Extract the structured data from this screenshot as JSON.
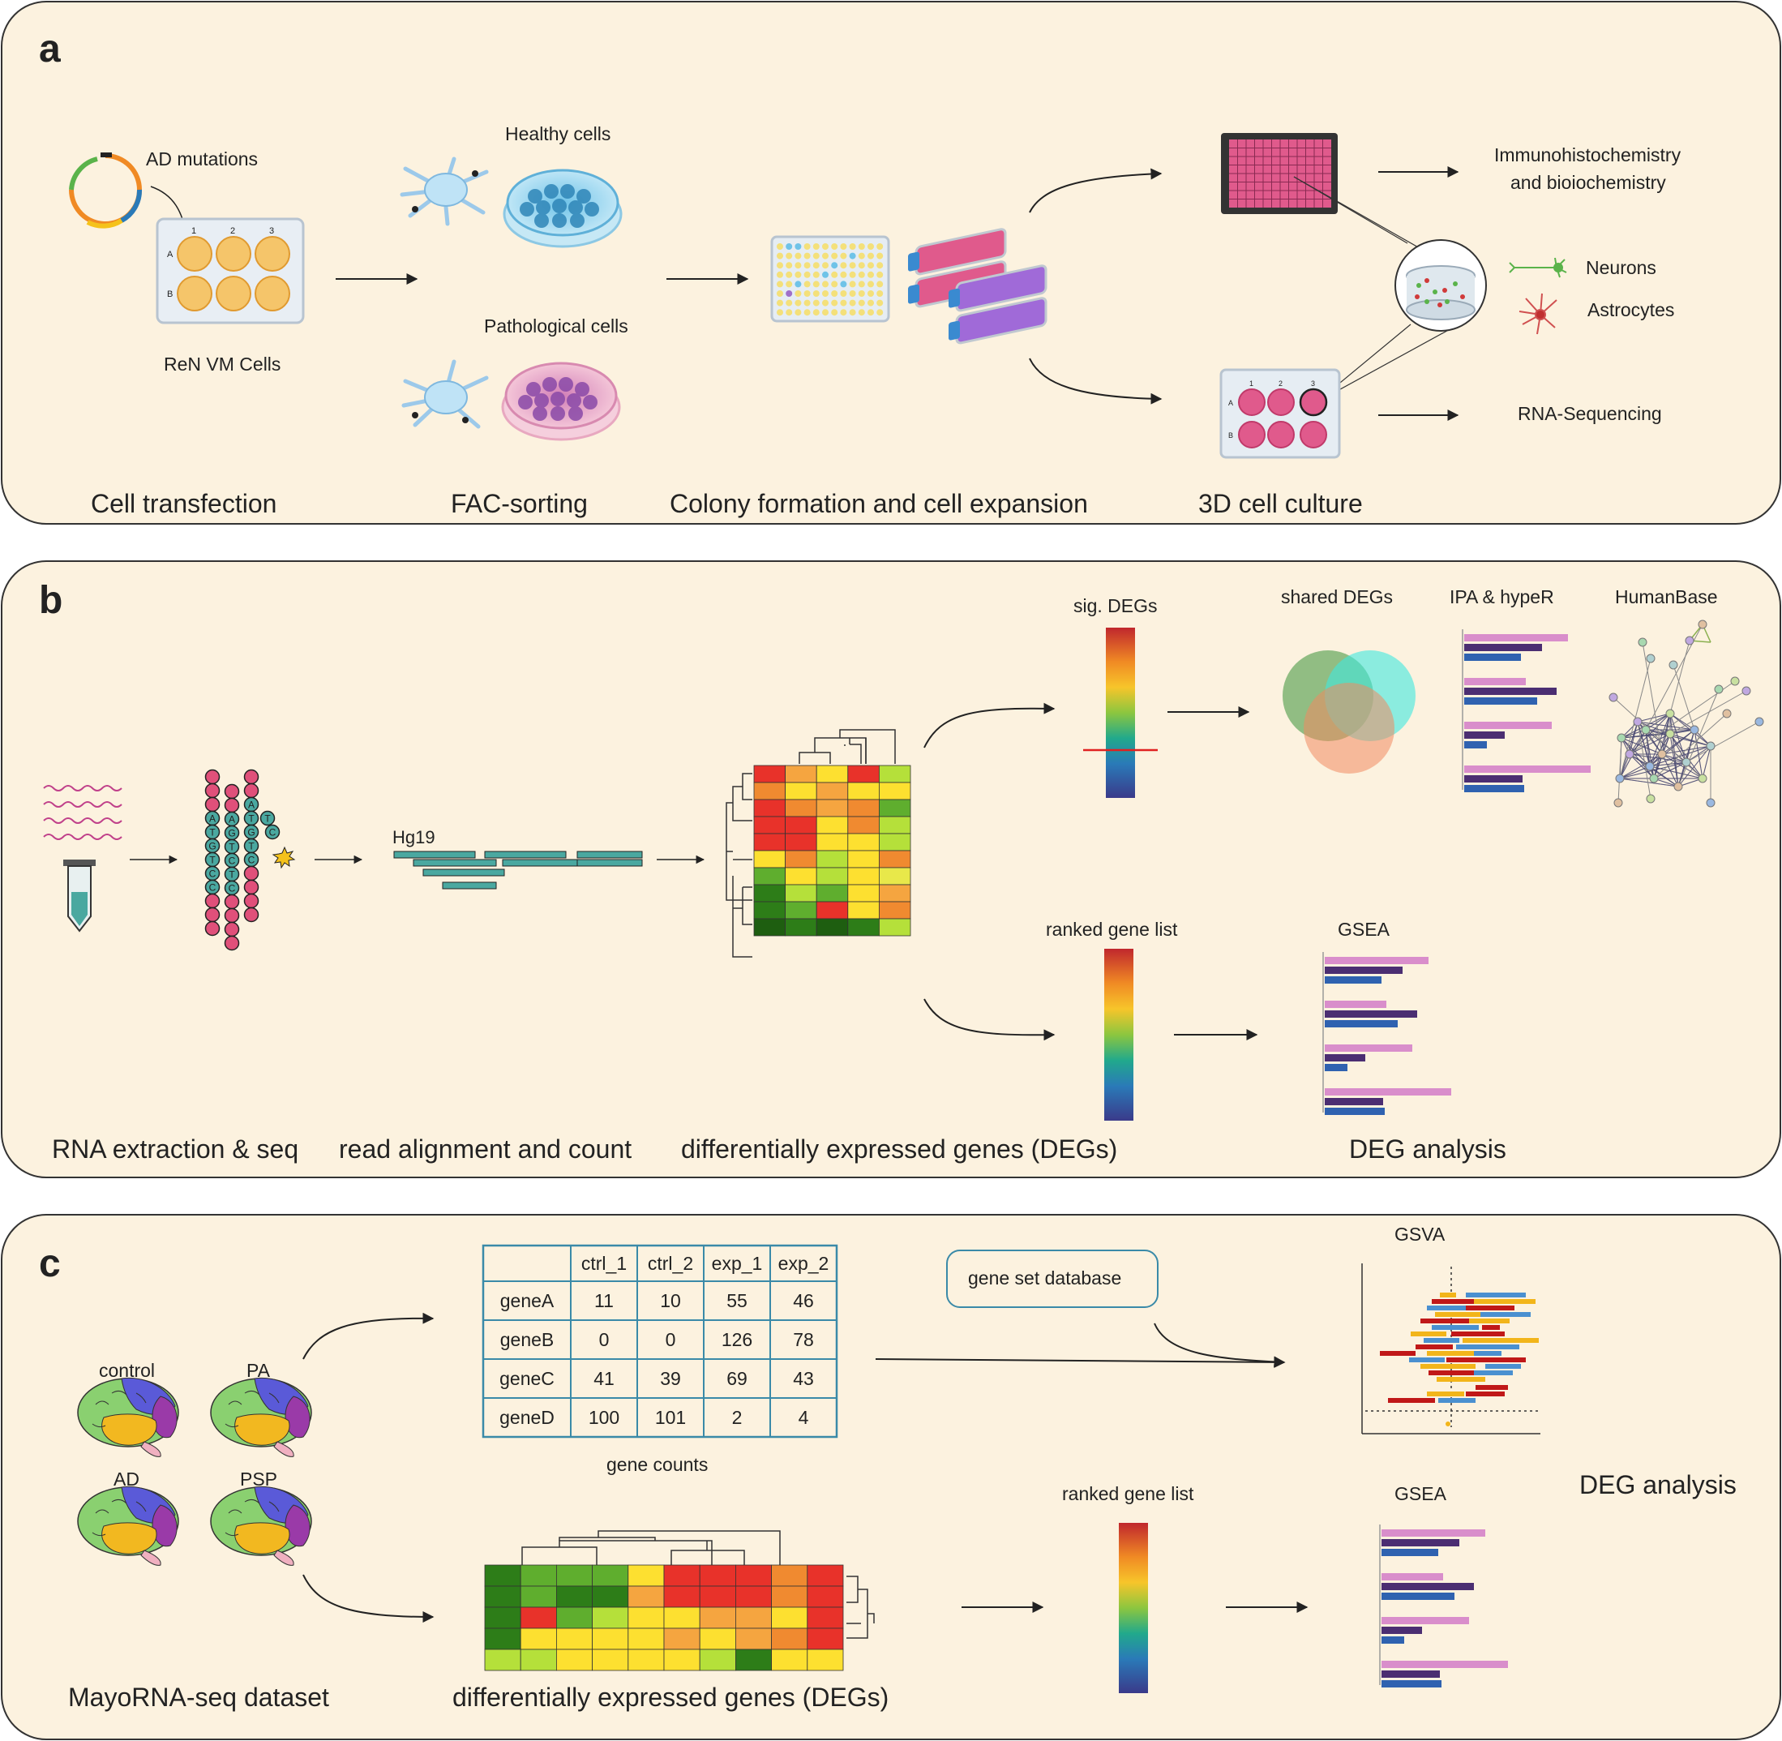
{
  "panels": {
    "a": {
      "letter": "a",
      "ad_mutations": "AD mutations",
      "ren_vm_cells": "ReN VM Cells",
      "healthy_cells": "Healthy cells",
      "pathological_cells": "Pathological cells",
      "immuno_line1": "Immunohistochemistry",
      "immuno_line2": "and bioiochemistry",
      "neurons": "Neurons",
      "astrocytes": "Astrocytes",
      "rna_sequencing": "RNA-Sequencing",
      "plate6_cols": [
        "1",
        "2",
        "3"
      ],
      "plate6_rows": [
        "A",
        "B"
      ],
      "steps": [
        "Cell transfection",
        "FAC-sorting",
        "Colony formation and cell expansion",
        "3D cell culture"
      ]
    },
    "b": {
      "letter": "b",
      "hg19": "Hg19",
      "seq_col1": [
        "A",
        "T",
        "G",
        "T",
        "C",
        "C"
      ],
      "seq_col2": [
        "A",
        "G",
        "T",
        "C",
        "T",
        "C"
      ],
      "seq_col3": [
        "A",
        "T",
        "G",
        "T",
        "C"
      ],
      "seq_col3_side": [
        "T",
        "C"
      ],
      "sig_degs": "sig. DEGs",
      "shared_degs": "shared DEGs",
      "ipa_hyper": "IPA & hypeR",
      "humanbase": "HumanBase",
      "ranked_gene_list": "ranked gene list",
      "gsea": "GSEA",
      "steps": [
        "RNA extraction & seq",
        "read alignment and count",
        "differentially expressed genes (DEGs)",
        "DEG analysis"
      ]
    },
    "c": {
      "letter": "c",
      "groups": [
        "control",
        "PA",
        "AD",
        "PSP"
      ],
      "table_headers": [
        "",
        "ctrl_1",
        "ctrl_2",
        "exp_1",
        "exp_2"
      ],
      "table_rows": [
        [
          "geneA",
          "11",
          "10",
          "55",
          "46"
        ],
        [
          "geneB",
          "0",
          "0",
          "126",
          "78"
        ],
        [
          "geneC",
          "41",
          "39",
          "69",
          "43"
        ],
        [
          "geneD",
          "100",
          "101",
          "2",
          "4"
        ]
      ],
      "gene_counts": "gene counts",
      "gene_set_database": "gene set database",
      "gsva": "GSVA",
      "ranked_gene_list": "ranked gene list",
      "gsea": "GSEA",
      "deg_analysis": "DEG analysis",
      "steps": [
        "MayoRNA-seq dataset",
        "differentially expressed genes (DEGs)"
      ]
    }
  },
  "colors": {
    "panel_bg": "#fcf2df",
    "panel_border": "#333333",
    "teal": "#4aa8a0",
    "pink_dot": "#e0507a",
    "bar_pink": "#d98ecb",
    "bar_purple": "#4b2e72",
    "bar_blue": "#2f62b0",
    "gsva_red": "#c01818",
    "gsva_yellow": "#f2b51a",
    "gsva_blue": "#4a90d0"
  }
}
